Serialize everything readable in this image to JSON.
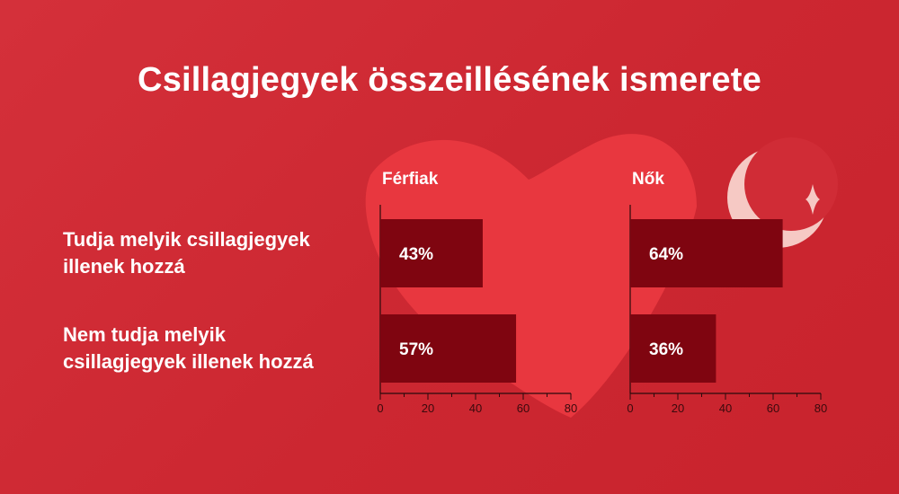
{
  "chart_data": {
    "type": "bar",
    "orientation": "horizontal",
    "title": "Csillagjegyek összeillésének ismerete",
    "categories": [
      "Tudja melyik csillagjegyek\nillenek hozzá",
      "Nem tudja melyik\ncsillagjegyek illenek hozzá"
    ],
    "panels": [
      {
        "name": "Férfiak",
        "values": [
          43,
          57
        ],
        "labels": [
          "43%",
          "57%"
        ]
      },
      {
        "name": "Nők",
        "values": [
          64,
          36
        ],
        "labels": [
          "64%",
          "36%"
        ]
      }
    ],
    "xlim": [
      0,
      80
    ],
    "xticks": [
      "0",
      "20",
      "40",
      "60",
      "80"
    ],
    "grid": false,
    "legend": "none",
    "colors": {
      "background": "#cc2731",
      "bar": "#7f0510",
      "heart": "#e8373f",
      "moon": "#f6c9c4",
      "text": "#ffffff",
      "axis": "#2a0a0c"
    }
  }
}
